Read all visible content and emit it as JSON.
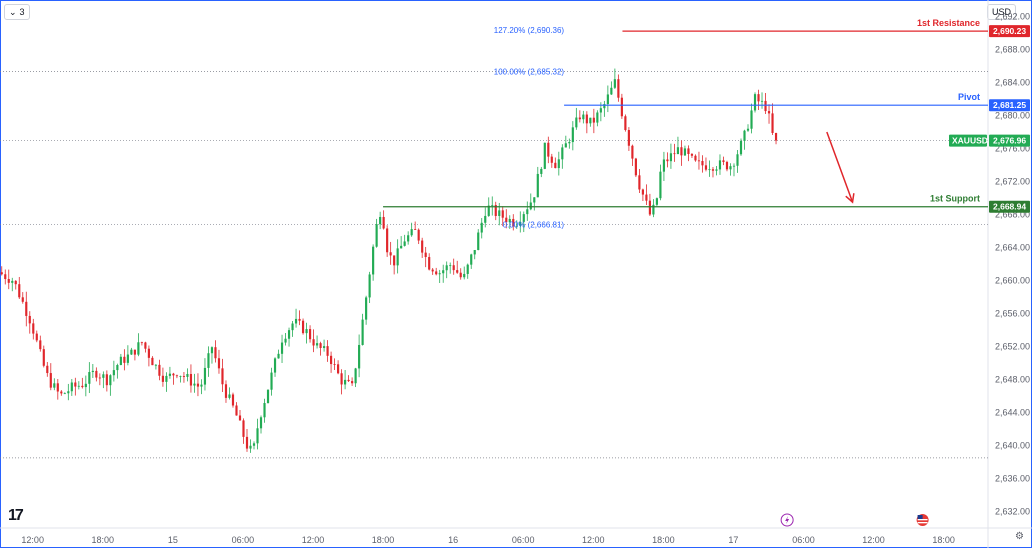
{
  "toolbar": {
    "interval_label": "3",
    "interval_icon": "chevron-down-icon",
    "currency_label": "USD"
  },
  "chart_data": {
    "type": "candlestick",
    "symbol": "XAUUSD",
    "ylim": [
      2630,
      2694
    ],
    "y_ticks": [
      {
        "value": 2692,
        "label": "2,692.00"
      },
      {
        "value": 2688,
        "label": "2,688.00"
      },
      {
        "value": 2684,
        "label": "2,684.00"
      },
      {
        "value": 2680,
        "label": "2,680.00"
      },
      {
        "value": 2676,
        "label": "2,676.00"
      },
      {
        "value": 2672,
        "label": "2,672.00"
      },
      {
        "value": 2668,
        "label": "2,668.00"
      },
      {
        "value": 2664,
        "label": "2,664.00"
      },
      {
        "value": 2660,
        "label": "2,660.00"
      },
      {
        "value": 2656,
        "label": "2,656.00"
      },
      {
        "value": 2652,
        "label": "2,652.00"
      },
      {
        "value": 2648,
        "label": "2,648.00"
      },
      {
        "value": 2644,
        "label": "2,644.00"
      },
      {
        "value": 2640,
        "label": "2,640.00"
      },
      {
        "value": 2636,
        "label": "2,636.00"
      },
      {
        "value": 2632,
        "label": "2,632.00"
      }
    ],
    "x_ticks": [
      {
        "t": 0,
        "label": "12:00"
      },
      {
        "t": 6,
        "label": "18:00"
      },
      {
        "t": 12,
        "label": "15"
      },
      {
        "t": 18,
        "label": "06:00"
      },
      {
        "t": 24,
        "label": "12:00"
      },
      {
        "t": 30,
        "label": "18:00"
      },
      {
        "t": 36,
        "label": "16"
      },
      {
        "t": 42,
        "label": "06:00"
      },
      {
        "t": 48,
        "label": "12:00"
      },
      {
        "t": 54,
        "label": "18:00"
      },
      {
        "t": 60,
        "label": "17"
      },
      {
        "t": 66,
        "label": "06:00"
      },
      {
        "t": 72,
        "label": "12:00"
      },
      {
        "t": 78,
        "label": "18:00"
      }
    ],
    "x_range_hours": [
      -2.8,
      81.8
    ],
    "price_path": [
      [
        -2.8,
        2661
      ],
      [
        -1.5,
        2660
      ],
      [
        0,
        2655
      ],
      [
        1,
        2650
      ],
      [
        1.5,
        2648
      ],
      [
        2.5,
        2646
      ],
      [
        3.5,
        2647
      ],
      [
        4.5,
        2647.5
      ],
      [
        5.5,
        2649
      ],
      [
        6.5,
        2648
      ],
      [
        7.5,
        2650
      ],
      [
        8.5,
        2651
      ],
      [
        9.5,
        2652.5
      ],
      [
        10.5,
        2650
      ],
      [
        11.5,
        2648
      ],
      [
        12.5,
        2649
      ],
      [
        13.5,
        2648
      ],
      [
        14.5,
        2647
      ],
      [
        15.5,
        2652
      ],
      [
        16.5,
        2647
      ],
      [
        17.5,
        2644
      ],
      [
        18.5,
        2640
      ],
      [
        19,
        2639
      ],
      [
        19.5,
        2643
      ],
      [
        20.5,
        2648
      ],
      [
        21.5,
        2653
      ],
      [
        22.5,
        2655
      ],
      [
        23.5,
        2654
      ],
      [
        24.5,
        2652
      ],
      [
        25.5,
        2651
      ],
      [
        26.5,
        2648
      ],
      [
        27.5,
        2647
      ],
      [
        28.5,
        2656
      ],
      [
        29.5,
        2666
      ],
      [
        30,
        2669
      ],
      [
        30.5,
        2664
      ],
      [
        31,
        2662
      ],
      [
        32,
        2665
      ],
      [
        33,
        2666
      ],
      [
        34,
        2662
      ],
      [
        35,
        2661
      ],
      [
        36,
        2662
      ],
      [
        37,
        2660
      ],
      [
        38,
        2664
      ],
      [
        39,
        2669
      ],
      [
        40,
        2668
      ],
      [
        41.5,
        2667
      ],
      [
        43,
        2670
      ],
      [
        44,
        2676
      ],
      [
        45,
        2674
      ],
      [
        46,
        2677
      ],
      [
        47,
        2680
      ],
      [
        48,
        2679
      ],
      [
        49,
        2681
      ],
      [
        50,
        2684
      ],
      [
        51,
        2678
      ],
      [
        52,
        2672
      ],
      [
        53,
        2668
      ],
      [
        53.5,
        2669
      ],
      [
        54,
        2674
      ],
      [
        55.5,
        2676
      ],
      [
        57,
        2674
      ],
      [
        58.5,
        2674
      ],
      [
        60,
        2674
      ],
      [
        61,
        2677
      ],
      [
        62,
        2682
      ],
      [
        63,
        2681
      ],
      [
        63.6,
        2676.96
      ]
    ],
    "last_price": {
      "value": 2676.96,
      "label": "2,676.96",
      "symbol_label": "XAUUSD"
    },
    "levels": [
      {
        "name": "1st Resistance",
        "value": 2690.23,
        "label": "2,690.23",
        "color": "#e0262b",
        "start_t": 50.5
      },
      {
        "name": "Pivot",
        "value": 2681.25,
        "label": "2,681.25",
        "color": "#2962ff",
        "start_t": 45.5
      },
      {
        "name": "1st Support",
        "value": 2668.94,
        "label": "2,668.94",
        "color": "#2e7d32",
        "start_t": 30
      }
    ],
    "fib_levels": [
      {
        "label": "127.20% (2,690.36)",
        "value": 2690.36,
        "color": "#2962ff"
      },
      {
        "label": "100.00% (2,685.32)",
        "value": 2685.32,
        "color": "#2962ff"
      },
      {
        "label": "0.00% (2,666.81)",
        "value": 2666.81,
        "color": "#2962ff"
      }
    ],
    "fib_label_t": 45.5,
    "dotted_lines": [
      2685.32,
      2676.96,
      2666.81,
      2638.5
    ],
    "arrow": {
      "from": [
        68,
        2678
      ],
      "to": [
        70.2,
        2669.5
      ],
      "color": "#e0262b"
    },
    "colors": {
      "up": "#26a69a",
      "down": "#ef5350",
      "up_bright": "#22ab54",
      "down_bright": "#e0262b"
    },
    "event_icons": [
      {
        "t": 64.6,
        "icon": "lightning-icon"
      },
      {
        "t": 76.2,
        "icon": "us-flag-icon"
      }
    ]
  },
  "branding": {
    "logo_text": "17"
  }
}
